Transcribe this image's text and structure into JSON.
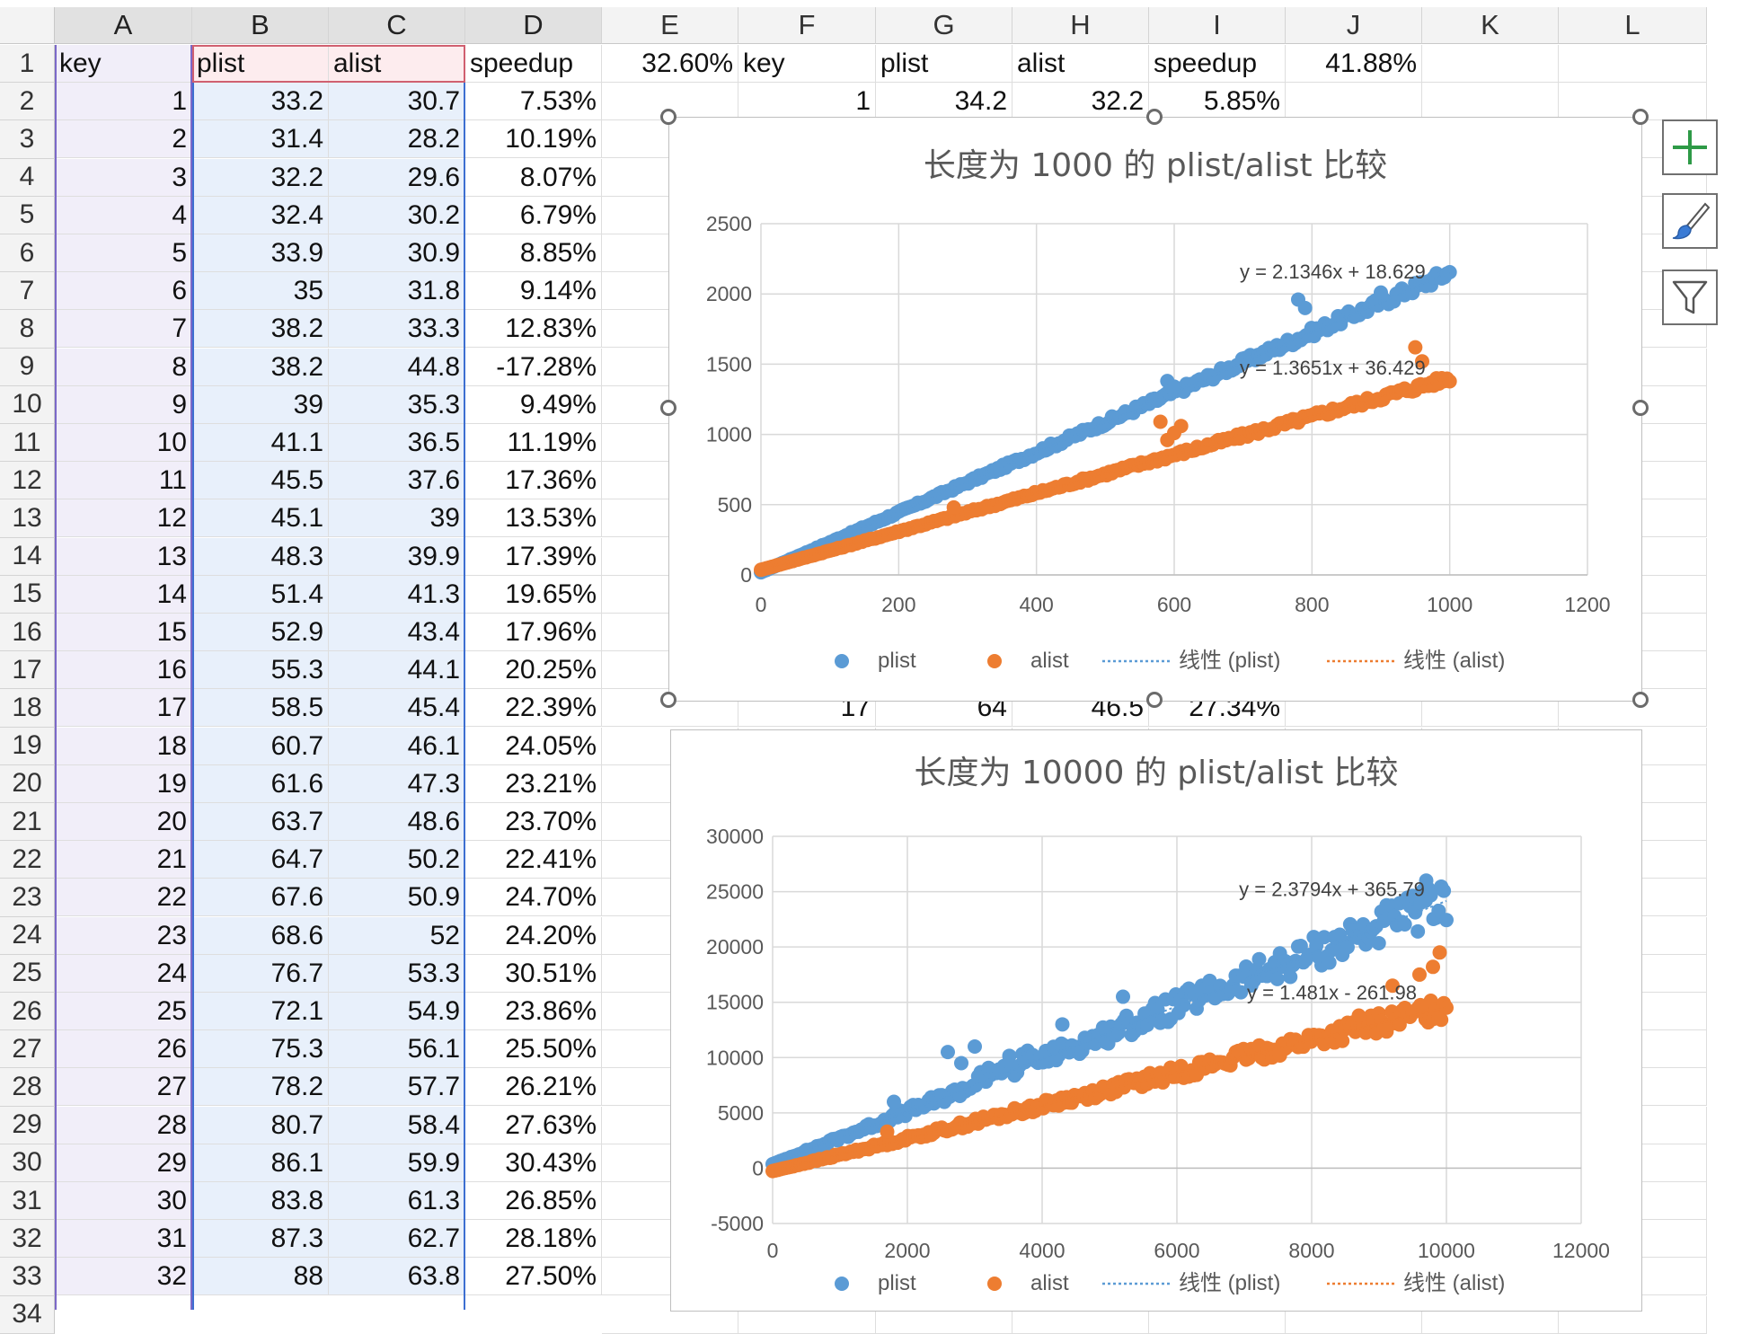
{
  "columns": [
    "A",
    "B",
    "C",
    "D",
    "E",
    "F",
    "G",
    "H",
    "I",
    "J",
    "K",
    "L"
  ],
  "header_row": {
    "A": "key",
    "B": "plist",
    "C": "alist",
    "D": "speedup",
    "E": "32.60%",
    "F": "key",
    "G": "plist",
    "H": "alist",
    "I": "speedup",
    "J": "41.88%"
  },
  "rows": [
    {
      "key": "1",
      "plist": "33.2",
      "alist": "30.7",
      "speedup": "7.53%"
    },
    {
      "key": "2",
      "plist": "31.4",
      "alist": "28.2",
      "speedup": "10.19%"
    },
    {
      "key": "3",
      "plist": "32.2",
      "alist": "29.6",
      "speedup": "8.07%"
    },
    {
      "key": "4",
      "plist": "32.4",
      "alist": "30.2",
      "speedup": "6.79%"
    },
    {
      "key": "5",
      "plist": "33.9",
      "alist": "30.9",
      "speedup": "8.85%"
    },
    {
      "key": "6",
      "plist": "35",
      "alist": "31.8",
      "speedup": "9.14%"
    },
    {
      "key": "7",
      "plist": "38.2",
      "alist": "33.3",
      "speedup": "12.83%"
    },
    {
      "key": "8",
      "plist": "38.2",
      "alist": "44.8",
      "speedup": "-17.28%"
    },
    {
      "key": "9",
      "plist": "39",
      "alist": "35.3",
      "speedup": "9.49%"
    },
    {
      "key": "10",
      "plist": "41.1",
      "alist": "36.5",
      "speedup": "11.19%"
    },
    {
      "key": "11",
      "plist": "45.5",
      "alist": "37.6",
      "speedup": "17.36%"
    },
    {
      "key": "12",
      "plist": "45.1",
      "alist": "39",
      "speedup": "13.53%"
    },
    {
      "key": "13",
      "plist": "48.3",
      "alist": "39.9",
      "speedup": "17.39%"
    },
    {
      "key": "14",
      "plist": "51.4",
      "alist": "41.3",
      "speedup": "19.65%"
    },
    {
      "key": "15",
      "plist": "52.9",
      "alist": "43.4",
      "speedup": "17.96%"
    },
    {
      "key": "16",
      "plist": "55.3",
      "alist": "44.1",
      "speedup": "20.25%"
    },
    {
      "key": "17",
      "plist": "58.5",
      "alist": "45.4",
      "speedup": "22.39%"
    },
    {
      "key": "18",
      "plist": "60.7",
      "alist": "46.1",
      "speedup": "24.05%"
    },
    {
      "key": "19",
      "plist": "61.6",
      "alist": "47.3",
      "speedup": "23.21%"
    },
    {
      "key": "20",
      "plist": "63.7",
      "alist": "48.6",
      "speedup": "23.70%"
    },
    {
      "key": "21",
      "plist": "64.7",
      "alist": "50.2",
      "speedup": "22.41%"
    },
    {
      "key": "22",
      "plist": "67.6",
      "alist": "50.9",
      "speedup": "24.70%"
    },
    {
      "key": "23",
      "plist": "68.6",
      "alist": "52",
      "speedup": "24.20%"
    },
    {
      "key": "24",
      "plist": "76.7",
      "alist": "53.3",
      "speedup": "30.51%"
    },
    {
      "key": "25",
      "plist": "72.1",
      "alist": "54.9",
      "speedup": "23.86%"
    },
    {
      "key": "26",
      "plist": "75.3",
      "alist": "56.1",
      "speedup": "25.50%"
    },
    {
      "key": "27",
      "plist": "78.2",
      "alist": "57.7",
      "speedup": "26.21%"
    },
    {
      "key": "28",
      "plist": "80.7",
      "alist": "58.4",
      "speedup": "27.63%"
    },
    {
      "key": "29",
      "plist": "86.1",
      "alist": "59.9",
      "speedup": "30.43%"
    },
    {
      "key": "30",
      "plist": "83.8",
      "alist": "61.3",
      "speedup": "26.85%"
    },
    {
      "key": "31",
      "plist": "87.3",
      "alist": "62.7",
      "speedup": "28.18%"
    },
    {
      "key": "32",
      "plist": "88",
      "alist": "63.8",
      "speedup": "27.50%"
    }
  ],
  "right_visible": {
    "row2": {
      "F": "1",
      "G": "34.2",
      "H": "32.2",
      "I": "5.85%"
    },
    "row18": {
      "F": "17",
      "G": "64",
      "H": "46.5",
      "I": "27.34%"
    }
  },
  "colors": {
    "plist": "#5b9bd5",
    "alist": "#ed7d31",
    "gridline": "#d9d9d9",
    "selection": "#7b68c8"
  },
  "side_buttons": [
    {
      "name": "chart-elements-button",
      "icon": "plus-icon"
    },
    {
      "name": "chart-styles-button",
      "icon": "brush-icon"
    },
    {
      "name": "chart-filters-button",
      "icon": "funnel-icon"
    }
  ],
  "chart_data": [
    {
      "type": "scatter",
      "title": "长度为 1000 的 plist/alist 比较",
      "xlim": [
        0,
        1200
      ],
      "ylim": [
        0,
        2500
      ],
      "x_ticks": [
        "0",
        "200",
        "400",
        "600",
        "800",
        "1000",
        "1200"
      ],
      "y_ticks": [
        "0",
        "500",
        "1000",
        "1500",
        "2000",
        "2500"
      ],
      "legend": [
        "plist",
        "alist",
        "线性 (plist)",
        "线性 (alist)"
      ],
      "legend_placement": "bottom",
      "series": [
        {
          "name": "plist",
          "slope": 2.1346,
          "intercept": 18.629,
          "x_max": 1000,
          "equation": "y = 2.1346x + 18.629",
          "outliers": [
            [
              780,
              1960
            ],
            [
              790,
              1900
            ],
            [
              590,
              1380
            ],
            [
              600,
              1340
            ],
            [
              900,
              2010
            ]
          ]
        },
        {
          "name": "alist",
          "slope": 1.3651,
          "intercept": 36.429,
          "x_max": 1000,
          "equation": "y = 1.3651x + 36.429",
          "outliers": [
            [
              580,
              1090
            ],
            [
              610,
              1060
            ],
            [
              590,
              960
            ],
            [
              600,
              1010
            ],
            [
              950,
              1620
            ],
            [
              960,
              1520
            ],
            [
              280,
              480
            ]
          ]
        }
      ]
    },
    {
      "type": "scatter",
      "title": "长度为  10000 的 plist/alist 比较",
      "xlim": [
        0,
        12000
      ],
      "ylim": [
        -5000,
        30000
      ],
      "x_ticks": [
        "0",
        "2000",
        "4000",
        "6000",
        "8000",
        "10000",
        "12000"
      ],
      "y_ticks": [
        "-5000",
        "0",
        "5000",
        "10000",
        "15000",
        "20000",
        "25000",
        "30000"
      ],
      "legend": [
        "plist",
        "alist",
        "线性 (plist)",
        "线性 (alist)"
      ],
      "legend_placement": "bottom",
      "series": [
        {
          "name": "plist",
          "slope": 2.3794,
          "intercept": 365.79,
          "x_max": 10000,
          "equation": "y = 2.3794x + 365.79",
          "outliers": [
            [
              2600,
              10500
            ],
            [
              2800,
              9500
            ],
            [
              3000,
              11000
            ],
            [
              1800,
              6000
            ],
            [
              9700,
              26000
            ],
            [
              5200,
              15500
            ],
            [
              4300,
              13000
            ]
          ]
        },
        {
          "name": "alist",
          "slope": 1.481,
          "intercept": -261.98,
          "x_max": 10000,
          "equation": "y = 1.481x - 261.98",
          "outliers": [
            [
              9900,
              19500
            ],
            [
              9600,
              17500
            ],
            [
              8700,
              13800
            ],
            [
              9200,
              16500
            ],
            [
              1700,
              3300
            ],
            [
              9800,
              18200
            ]
          ]
        }
      ]
    }
  ]
}
